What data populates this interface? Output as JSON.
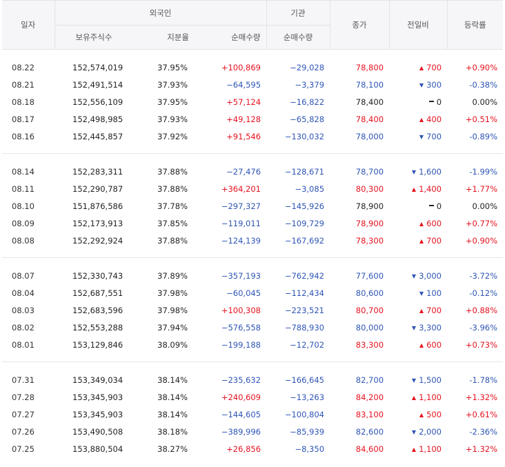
{
  "header": {
    "date": "일자",
    "foreign": "외국인",
    "institution": "기관",
    "close": "종가",
    "change": "전일비",
    "rate": "등락률",
    "holdings": "보유주식수",
    "ratio": "지분율",
    "foreign_net": "순매수량",
    "inst_net": "순매수량"
  },
  "colors": {
    "up": "#e5121f",
    "down": "#2e55b5"
  },
  "groups": [
    [
      {
        "date": "08.22",
        "hold": "152,574,019",
        "ratio": "37.95%",
        "fnet": "+100,869",
        "fdir": "pos",
        "inet": "−29,028",
        "idir": "neg",
        "close": "78,800",
        "cdir": "pos",
        "chg": "700",
        "chdir": "up",
        "rate": "+0.90%"
      },
      {
        "date": "08.21",
        "hold": "152,491,514",
        "ratio": "37.93%",
        "fnet": "−64,595",
        "fdir": "neg",
        "inet": "−3,379",
        "idir": "neg",
        "close": "78,100",
        "cdir": "neg",
        "chg": "300",
        "chdir": "down",
        "rate": "-0.38%"
      },
      {
        "date": "08.18",
        "hold": "152,556,109",
        "ratio": "37.95%",
        "fnet": "+57,124",
        "fdir": "pos",
        "inet": "−16,822",
        "idir": "neg",
        "close": "78,400",
        "cdir": "flat",
        "chg": "0",
        "chdir": "flat",
        "rate": "0.00%"
      },
      {
        "date": "08.17",
        "hold": "152,498,985",
        "ratio": "37.93%",
        "fnet": "+49,128",
        "fdir": "pos",
        "inet": "−65,828",
        "idir": "neg",
        "close": "78,400",
        "cdir": "pos",
        "chg": "400",
        "chdir": "up",
        "rate": "+0.51%"
      },
      {
        "date": "08.16",
        "hold": "152,445,857",
        "ratio": "37.92%",
        "fnet": "+91,546",
        "fdir": "pos",
        "inet": "−130,032",
        "idir": "neg",
        "close": "78,000",
        "cdir": "neg",
        "chg": "700",
        "chdir": "down",
        "rate": "-0.89%"
      }
    ],
    [
      {
        "date": "08.14",
        "hold": "152,283,311",
        "ratio": "37.88%",
        "fnet": "−27,476",
        "fdir": "neg",
        "inet": "−128,671",
        "idir": "neg",
        "close": "78,700",
        "cdir": "neg",
        "chg": "1,600",
        "chdir": "down",
        "rate": "-1.99%"
      },
      {
        "date": "08.11",
        "hold": "152,290,787",
        "ratio": "37.88%",
        "fnet": "+364,201",
        "fdir": "pos",
        "inet": "−3,085",
        "idir": "neg",
        "close": "80,300",
        "cdir": "pos",
        "chg": "1,400",
        "chdir": "up",
        "rate": "+1.77%"
      },
      {
        "date": "08.10",
        "hold": "151,876,586",
        "ratio": "37.78%",
        "fnet": "−297,327",
        "fdir": "neg",
        "inet": "−145,926",
        "idir": "neg",
        "close": "78,900",
        "cdir": "flat",
        "chg": "0",
        "chdir": "flat",
        "rate": "0.00%"
      },
      {
        "date": "08.09",
        "hold": "152,173,913",
        "ratio": "37.85%",
        "fnet": "−119,011",
        "fdir": "neg",
        "inet": "−109,729",
        "idir": "neg",
        "close": "78,900",
        "cdir": "pos",
        "chg": "600",
        "chdir": "up",
        "rate": "+0.77%"
      },
      {
        "date": "08.08",
        "hold": "152,292,924",
        "ratio": "37.88%",
        "fnet": "−124,139",
        "fdir": "neg",
        "inet": "−167,692",
        "idir": "neg",
        "close": "78,300",
        "cdir": "pos",
        "chg": "700",
        "chdir": "up",
        "rate": "+0.90%"
      }
    ],
    [
      {
        "date": "08.07",
        "hold": "152,330,743",
        "ratio": "37.89%",
        "fnet": "−357,193",
        "fdir": "neg",
        "inet": "−762,942",
        "idir": "neg",
        "close": "77,600",
        "cdir": "neg",
        "chg": "3,000",
        "chdir": "down",
        "rate": "-3.72%"
      },
      {
        "date": "08.04",
        "hold": "152,687,551",
        "ratio": "37.98%",
        "fnet": "−60,045",
        "fdir": "neg",
        "inet": "−112,434",
        "idir": "neg",
        "close": "80,600",
        "cdir": "neg",
        "chg": "100",
        "chdir": "down",
        "rate": "-0.12%"
      },
      {
        "date": "08.03",
        "hold": "152,683,596",
        "ratio": "37.98%",
        "fnet": "+100,308",
        "fdir": "pos",
        "inet": "−223,521",
        "idir": "neg",
        "close": "80,700",
        "cdir": "pos",
        "chg": "700",
        "chdir": "up",
        "rate": "+0.88%"
      },
      {
        "date": "08.02",
        "hold": "152,553,288",
        "ratio": "37.94%",
        "fnet": "−576,558",
        "fdir": "neg",
        "inet": "−788,930",
        "idir": "neg",
        "close": "80,000",
        "cdir": "neg",
        "chg": "3,300",
        "chdir": "down",
        "rate": "-3.96%"
      },
      {
        "date": "08.01",
        "hold": "153,129,846",
        "ratio": "38.09%",
        "fnet": "−199,188",
        "fdir": "neg",
        "inet": "−12,702",
        "idir": "neg",
        "close": "83,300",
        "cdir": "pos",
        "chg": "600",
        "chdir": "up",
        "rate": "+0.73%"
      }
    ],
    [
      {
        "date": "07.31",
        "hold": "153,349,034",
        "ratio": "38.14%",
        "fnet": "−235,632",
        "fdir": "neg",
        "inet": "−166,645",
        "idir": "neg",
        "close": "82,700",
        "cdir": "neg",
        "chg": "1,500",
        "chdir": "down",
        "rate": "-1.78%"
      },
      {
        "date": "07.28",
        "hold": "153,345,903",
        "ratio": "38.14%",
        "fnet": "+240,609",
        "fdir": "pos",
        "inet": "−13,263",
        "idir": "neg",
        "close": "84,200",
        "cdir": "pos",
        "chg": "1,100",
        "chdir": "up",
        "rate": "+1.32%"
      },
      {
        "date": "07.27",
        "hold": "153,345,903",
        "ratio": "38.14%",
        "fnet": "−144,605",
        "fdir": "neg",
        "inet": "−100,804",
        "idir": "neg",
        "close": "83,100",
        "cdir": "pos",
        "chg": "500",
        "chdir": "up",
        "rate": "+0.61%"
      },
      {
        "date": "07.26",
        "hold": "153,490,508",
        "ratio": "38.18%",
        "fnet": "−389,996",
        "fdir": "neg",
        "inet": "−85,939",
        "idir": "neg",
        "close": "82,600",
        "cdir": "neg",
        "chg": "2,000",
        "chdir": "down",
        "rate": "-2.36%"
      },
      {
        "date": "07.25",
        "hold": "153,880,504",
        "ratio": "38.27%",
        "fnet": "+26,856",
        "fdir": "pos",
        "inet": "−8,350",
        "idir": "neg",
        "close": "84,600",
        "cdir": "pos",
        "chg": "1,100",
        "chdir": "up",
        "rate": "+1.32%"
      }
    ]
  ]
}
